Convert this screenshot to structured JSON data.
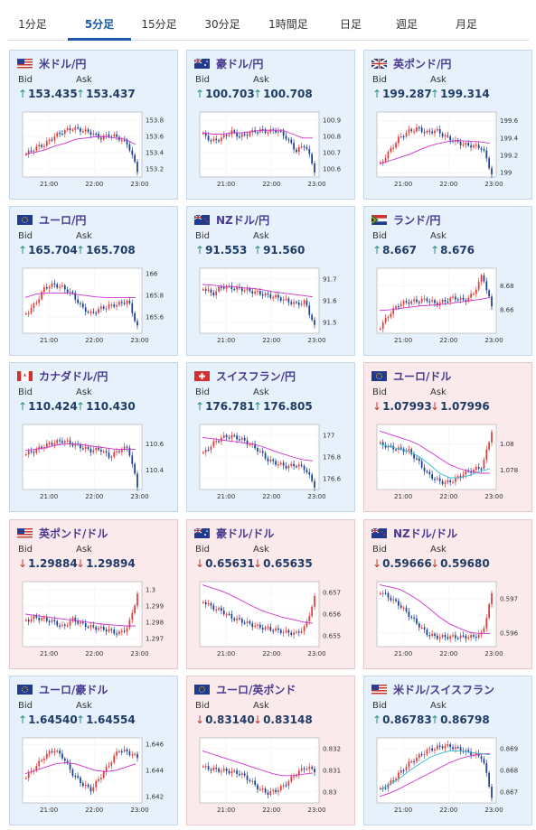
{
  "tabs": [
    {
      "label": "1分足",
      "active": false
    },
    {
      "label": "5分足",
      "active": true
    },
    {
      "label": "15分足",
      "active": false
    },
    {
      "label": "30分足",
      "active": false
    },
    {
      "label": "1時間足",
      "active": false
    },
    {
      "label": "日足",
      "active": false
    },
    {
      "label": "週足",
      "active": false
    },
    {
      "label": "月足",
      "active": false
    }
  ],
  "bid_label": "Bid",
  "ask_label": "Ask",
  "x_ticks": [
    "21:00",
    "22:00",
    "23:00"
  ],
  "colors": {
    "up_bg": "#e6f1fb",
    "down_bg": "#fbeaec",
    "up_arrow": "#2a8f7e",
    "down_arrow": "#c0392b",
    "pair_text": "#4a3a8f",
    "candle_up": "#e53935",
    "candle_down": "#1a3f99",
    "ma": "#cc33cc",
    "ma2": "#33bbcc"
  },
  "cards": [
    {
      "pair": "米ドル/円",
      "flag": "us",
      "dir": "up",
      "bid": "153.435",
      "ask": "153.437",
      "arrow": "↑",
      "y_ticks": [
        "153.8",
        "153.6",
        "153.4",
        "153.2"
      ],
      "ylim": [
        153.1,
        153.9
      ],
      "shape": [
        0.35,
        0.45,
        0.5,
        0.62,
        0.7,
        0.75,
        0.72,
        0.68,
        0.6,
        0.65,
        0.6,
        0.5,
        0.1
      ],
      "ma": [
        0.35,
        0.38,
        0.42,
        0.48,
        0.52,
        0.58,
        0.6,
        0.62,
        0.62,
        0.6,
        0.58,
        0.5
      ],
      "ma2": null
    },
    {
      "pair": "豪ドル/円",
      "flag": "au",
      "dir": "up",
      "bid": "100.703",
      "ask": "100.708",
      "arrow": "↑",
      "y_ticks": [
        "100.9",
        "100.8",
        "100.7",
        "100.6"
      ],
      "ylim": [
        100.55,
        100.95
      ],
      "shape": [
        0.65,
        0.55,
        0.6,
        0.7,
        0.62,
        0.68,
        0.72,
        0.7,
        0.72,
        0.6,
        0.4,
        0.5,
        0.1
      ],
      "ma": [
        0.68,
        0.66,
        0.66,
        0.68,
        0.68,
        0.7,
        0.72,
        0.72,
        0.72,
        0.66,
        0.6,
        0.6
      ],
      "ma2": null
    },
    {
      "pair": "英ポンド/円",
      "flag": "gb",
      "dir": "up",
      "bid": "199.287",
      "ask": "199.314",
      "arrow": "↑",
      "y_ticks": [
        "199.6",
        "199.4",
        "199.2",
        "199"
      ],
      "ylim": [
        198.95,
        199.7
      ],
      "shape": [
        0.2,
        0.4,
        0.6,
        0.7,
        0.75,
        0.68,
        0.72,
        0.62,
        0.55,
        0.5,
        0.48,
        0.45,
        0.05
      ],
      "ma": [
        0.2,
        0.25,
        0.3,
        0.35,
        0.42,
        0.48,
        0.52,
        0.55,
        0.56,
        0.55,
        0.54,
        0.52
      ],
      "ma2": null
    },
    {
      "pair": "ユーロ/円",
      "flag": "eu",
      "dir": "up",
      "bid": "165.704",
      "ask": "165.708",
      "arrow": "↑",
      "y_ticks": [
        "166",
        "165.8",
        "165.6"
      ],
      "ylim": [
        165.45,
        166.05
      ],
      "shape": [
        0.3,
        0.45,
        0.7,
        0.75,
        0.7,
        0.6,
        0.4,
        0.3,
        0.38,
        0.42,
        0.45,
        0.5,
        0.1
      ],
      "ma": [
        0.55,
        0.6,
        0.62,
        0.62,
        0.62,
        0.6,
        0.58,
        0.56,
        0.55,
        0.55,
        0.55,
        0.55
      ],
      "ma2": null
    },
    {
      "pair": "NZドル/円",
      "flag": "nz",
      "dir": "up",
      "bid": "91.553",
      "ask": "91.560",
      "arrow": "↑",
      "y_ticks": [
        "91.7",
        "91.6",
        "91.5"
      ],
      "ylim": [
        91.45,
        91.75
      ],
      "shape": [
        0.7,
        0.6,
        0.72,
        0.7,
        0.68,
        0.65,
        0.62,
        0.58,
        0.55,
        0.5,
        0.45,
        0.48,
        0.1
      ],
      "ma": [
        0.75,
        0.74,
        0.72,
        0.72,
        0.7,
        0.69,
        0.67,
        0.64,
        0.62,
        0.6,
        0.58,
        0.56
      ],
      "ma2": null
    },
    {
      "pair": "ランド/円",
      "flag": "za",
      "dir": "up",
      "bid": "8.667",
      "ask": "8.676",
      "arrow": "↑",
      "y_ticks": [
        "8.68",
        "8.66"
      ],
      "ylim": [
        8.64,
        8.695
      ],
      "shape": [
        0.1,
        0.3,
        0.45,
        0.48,
        0.5,
        0.52,
        0.45,
        0.5,
        0.55,
        0.5,
        0.6,
        0.9,
        0.4
      ],
      "ma": [
        0.35,
        0.36,
        0.38,
        0.4,
        0.42,
        0.43,
        0.44,
        0.46,
        0.48,
        0.5,
        0.52,
        0.55
      ],
      "ma2": null
    },
    {
      "pair": "カナダドル/円",
      "flag": "ca",
      "dir": "up",
      "bid": "110.424",
      "ask": "110.430",
      "arrow": "↑",
      "y_ticks": [
        "110.6",
        "110.4"
      ],
      "ylim": [
        110.25,
        110.75
      ],
      "shape": [
        0.55,
        0.6,
        0.68,
        0.72,
        0.75,
        0.7,
        0.65,
        0.6,
        0.62,
        0.5,
        0.6,
        0.65,
        0.05
      ],
      "ma": [
        0.6,
        0.62,
        0.64,
        0.68,
        0.7,
        0.7,
        0.68,
        0.66,
        0.64,
        0.62,
        0.62,
        0.62
      ],
      "ma2": null
    },
    {
      "pair": "スイスフラン/円",
      "flag": "ch",
      "dir": "up",
      "bid": "176.781",
      "ask": "176.805",
      "arrow": "↑",
      "y_ticks": [
        "177",
        "176.8",
        "176.6"
      ],
      "ylim": [
        176.5,
        177.1
      ],
      "shape": [
        0.55,
        0.7,
        0.8,
        0.82,
        0.78,
        0.7,
        0.6,
        0.45,
        0.4,
        0.35,
        0.38,
        0.32,
        0.05
      ],
      "ma": [
        0.8,
        0.78,
        0.76,
        0.74,
        0.72,
        0.7,
        0.66,
        0.6,
        0.55,
        0.5,
        0.46,
        0.44
      ],
      "ma2": null
    },
    {
      "pair": "ユーロ/ドル",
      "flag": "eu",
      "dir": "down",
      "bid": "1.07993",
      "ask": "1.07996",
      "arrow": "↓",
      "y_ticks": [
        "1.08",
        "1.078"
      ],
      "ylim": [
        1.0765,
        1.0815
      ],
      "shape": [
        0.7,
        0.65,
        0.62,
        0.6,
        0.45,
        0.25,
        0.15,
        0.1,
        0.15,
        0.25,
        0.3,
        0.35,
        0.9
      ],
      "ma": [
        0.9,
        0.85,
        0.8,
        0.75,
        0.68,
        0.58,
        0.48,
        0.38,
        0.32,
        0.28,
        0.25,
        0.25
      ],
      "ma2": [
        0.7,
        0.66,
        0.62,
        0.58,
        0.5,
        0.38,
        0.25,
        0.18,
        0.18,
        0.22,
        0.28,
        0.32
      ]
    },
    {
      "pair": "英ポンド/ドル",
      "flag": "us",
      "dir": "down",
      "bid": "1.29884",
      "ask": "1.29894",
      "arrow": "↓",
      "y_ticks": [
        "1.3",
        "1.299",
        "1.298",
        "1.297"
      ],
      "ylim": [
        1.2965,
        1.3005
      ],
      "shape": [
        0.4,
        0.45,
        0.42,
        0.38,
        0.3,
        0.42,
        0.35,
        0.3,
        0.28,
        0.25,
        0.2,
        0.3,
        0.8
      ],
      "ma": [
        0.5,
        0.48,
        0.46,
        0.44,
        0.42,
        0.4,
        0.38,
        0.36,
        0.34,
        0.33,
        0.32,
        0.32
      ],
      "ma2": null
    },
    {
      "pair": "豪ドル/ドル",
      "flag": "au",
      "dir": "down",
      "bid": "0.65631",
      "ask": "0.65635",
      "arrow": "↓",
      "y_ticks": [
        "0.657",
        "0.656",
        "0.655"
      ],
      "ylim": [
        0.6545,
        0.6575
      ],
      "shape": [
        0.7,
        0.6,
        0.55,
        0.45,
        0.4,
        0.35,
        0.3,
        0.28,
        0.25,
        0.22,
        0.2,
        0.3,
        0.75
      ],
      "ma": [
        0.95,
        0.9,
        0.85,
        0.78,
        0.7,
        0.62,
        0.55,
        0.5,
        0.45,
        0.42,
        0.38,
        0.36
      ],
      "ma2": null
    },
    {
      "pair": "NZドル/ドル",
      "flag": "nz",
      "dir": "down",
      "bid": "0.59666",
      "ask": "0.59680",
      "arrow": "↓",
      "y_ticks": [
        "0.597",
        "0.596"
      ],
      "ylim": [
        0.5956,
        0.5975
      ],
      "shape": [
        0.85,
        0.75,
        0.65,
        0.5,
        0.35,
        0.2,
        0.15,
        0.15,
        0.15,
        0.15,
        0.15,
        0.2,
        0.8
      ],
      "ma": [
        0.95,
        0.92,
        0.88,
        0.8,
        0.7,
        0.58,
        0.45,
        0.35,
        0.28,
        0.22,
        0.2,
        0.2
      ],
      "ma2": null
    },
    {
      "pair": "ユーロ/豪ドル",
      "flag": "eu",
      "dir": "up",
      "bid": "1.64540",
      "ask": "1.64554",
      "arrow": "↑",
      "y_ticks": [
        "1.646",
        "1.644",
        "1.642"
      ],
      "ylim": [
        1.6415,
        1.6465
      ],
      "shape": [
        0.4,
        0.55,
        0.72,
        0.82,
        0.7,
        0.45,
        0.3,
        0.2,
        0.4,
        0.6,
        0.82,
        0.78,
        0.7
      ],
      "ma": [
        0.45,
        0.5,
        0.55,
        0.6,
        0.62,
        0.6,
        0.55,
        0.5,
        0.48,
        0.5,
        0.55,
        0.6
      ],
      "ma2": null
    },
    {
      "pair": "ユーロ/英ポンド",
      "flag": "eu",
      "dir": "down",
      "bid": "0.83140",
      "ask": "0.83148",
      "arrow": "↓",
      "y_ticks": [
        "0.832",
        "0.831",
        "0.83"
      ],
      "ylim": [
        0.8295,
        0.8325
      ],
      "shape": [
        0.55,
        0.52,
        0.5,
        0.48,
        0.45,
        0.35,
        0.22,
        0.15,
        0.2,
        0.3,
        0.45,
        0.55,
        0.5
      ],
      "ma": [
        0.8,
        0.75,
        0.7,
        0.65,
        0.6,
        0.55,
        0.5,
        0.45,
        0.42,
        0.42,
        0.44,
        0.46
      ],
      "ma2": null
    },
    {
      "pair": "米ドル/スイスフラン",
      "flag": "us",
      "dir": "up",
      "bid": "0.86783",
      "ask": "0.86798",
      "arrow": "↑",
      "y_ticks": [
        "0.869",
        "0.868",
        "0.867"
      ],
      "ylim": [
        0.8665,
        0.8695
      ],
      "shape": [
        0.2,
        0.3,
        0.45,
        0.6,
        0.7,
        0.8,
        0.85,
        0.88,
        0.85,
        0.8,
        0.75,
        0.7,
        0.1
      ],
      "ma": [
        0.1,
        0.15,
        0.22,
        0.3,
        0.38,
        0.46,
        0.54,
        0.62,
        0.68,
        0.72,
        0.75,
        0.76
      ],
      "ma2": [
        0.2,
        0.28,
        0.38,
        0.5,
        0.6,
        0.7,
        0.76,
        0.8,
        0.8,
        0.78,
        0.76,
        0.74
      ]
    }
  ]
}
